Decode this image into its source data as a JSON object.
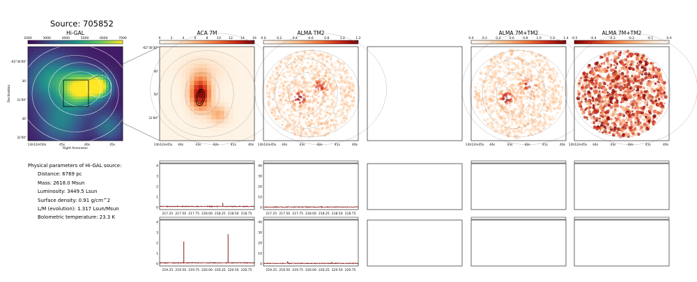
{
  "title": "Source: 705852",
  "colors": {
    "hot": [
      "#fffcf4",
      "#fde0c4",
      "#fbb17b",
      "#f1733a",
      "#cf2a17",
      "#7a0003"
    ],
    "viridis": [
      "#440154",
      "#3b528b",
      "#21918c",
      "#5ec962",
      "#fde725"
    ],
    "spectrum": "#7a0000"
  },
  "physical": {
    "header": "Physical parameters of Hi-GAL source:",
    "lines": [
      "Distance: 6769 pc",
      "Mass: 2618.0 Msun",
      "Luminosity: 3449.5 Lsun",
      "Surface density: 0.91 g/cm^2",
      "L/M (evolution): 1.317 Lsun/Msun",
      "Bolometric temperature: 23.3 K"
    ]
  },
  "chart_data": [
    {
      "type": "heatmap",
      "id": "higal",
      "title": "Hi-GAL",
      "colormap": "viridis",
      "colorbar_ticks": [
        "2000",
        "3000",
        "4000",
        "5000",
        "6000",
        "7000"
      ],
      "xlabel": "Right Ascension",
      "ylabel": "Declination",
      "xticks": [
        "13h12m50s",
        "45s",
        "40s",
        "35s"
      ],
      "yticks": [
        "-62°30'00\"",
        "30'",
        "31'00\"",
        "30'",
        "32'00\""
      ]
    },
    {
      "type": "heatmap",
      "id": "aca",
      "title": "ACA 7M",
      "colormap": "hot",
      "colorbar_ticks": [
        "0",
        "2",
        "4",
        "6",
        "8",
        "10",
        "12",
        "14",
        "16"
      ],
      "xticks": [
        "13h12m45s",
        "44s",
        "43s",
        "42s",
        "41s",
        "40s"
      ],
      "yticks": [
        "-62°30'30\"",
        "40'",
        "50'",
        "31'00\""
      ]
    },
    {
      "type": "heatmap",
      "id": "tm2",
      "title": "ALMA TM2",
      "colormap": "hot",
      "colorbar_ticks": [
        "0.0",
        "0.2",
        "0.4",
        "0.6",
        "0.8",
        "1.0",
        "1.2"
      ],
      "xticks": [
        "13h12m45s",
        "44s",
        "43s",
        "42s",
        "41s",
        "40s"
      ]
    },
    {
      "type": "heatmap",
      "id": "comb",
      "title": "ALMA 7M+TM2",
      "colormap": "hot",
      "colorbar_ticks": [
        "0.0",
        "0.2",
        "0.4",
        "0.6",
        "0.8",
        "1.0",
        "1.2",
        "1.4"
      ],
      "xticks": [
        "13h12m45s",
        "44s",
        "43s",
        "42s",
        "41s",
        "40s"
      ]
    },
    {
      "type": "heatmap",
      "id": "diff",
      "title": "ALMA 7M+TM2",
      "colormap": "hot_reversed",
      "colorbar_ticks": [
        "-0.5",
        "-0.4",
        "-0.3",
        "-0.2",
        "-0.1",
        "0.0"
      ],
      "xticks": [
        "13h12m45s",
        "44s",
        "43s",
        "42s",
        "41s",
        "40s"
      ]
    },
    {
      "type": "line",
      "id": "spec-aca-1",
      "ylim": [
        0,
        4
      ],
      "xlim": [
        217.1,
        218.9
      ],
      "yticks": [
        "0",
        "1",
        "2",
        "3",
        "4"
      ],
      "xticks": [
        "217.25",
        "217.50",
        "217.75",
        "218.00",
        "218.25",
        "218.50",
        "218.75"
      ],
      "baseline": 0.1,
      "lines": [
        {
          "x": 218.3,
          "y": 0.45
        }
      ]
    },
    {
      "type": "line",
      "id": "spec-tm2-1",
      "ylim": [
        0,
        40
      ],
      "xlim": [
        217.1,
        218.9
      ],
      "yticks": [
        "0",
        "10",
        "20",
        "30",
        "40"
      ],
      "xticks": [
        "217.25",
        "217.50",
        "217.75",
        "218.00",
        "218.25",
        "218.50",
        "218.75"
      ],
      "baseline": 0.5,
      "lines": []
    },
    {
      "type": "line",
      "id": "spec-aca-2",
      "ylim": [
        0,
        4
      ],
      "xlim": [
        219.1,
        220.9
      ],
      "yticks": [
        "0",
        "1",
        "2",
        "3",
        "4"
      ],
      "xticks": [
        "219.25",
        "219.50",
        "219.75",
        "220.00",
        "220.25",
        "220.50",
        "220.75"
      ],
      "baseline": 0.1,
      "lines": [
        {
          "x": 219.56,
          "y": 2.15
        },
        {
          "x": 220.4,
          "y": 2.85
        }
      ]
    },
    {
      "type": "line",
      "id": "spec-tm2-2",
      "ylim": [
        0,
        40
      ],
      "xlim": [
        219.1,
        220.9
      ],
      "yticks": [
        "0",
        "10",
        "20",
        "30",
        "40"
      ],
      "xticks": [
        "219.25",
        "219.50",
        "219.75",
        "220.00",
        "220.25",
        "220.50",
        "220.75"
      ],
      "baseline": 0.5,
      "lines": [
        {
          "x": 219.56,
          "y": 2.5
        },
        {
          "x": 220.4,
          "y": 2.0
        }
      ]
    }
  ]
}
